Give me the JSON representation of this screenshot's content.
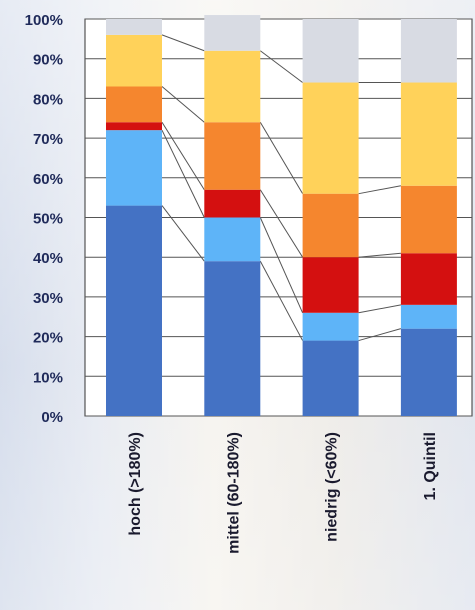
{
  "chart_data": {
    "type": "bar",
    "stacked": true,
    "categories": [
      "hoch (>180%)",
      "mittel (60-180%)",
      "niedrig (<60%)",
      "1. Quintil"
    ],
    "ylim": [
      0,
      100
    ],
    "yticks": [
      0,
      10,
      20,
      30,
      40,
      50,
      60,
      70,
      80,
      90,
      100
    ],
    "ytick_labels": [
      "0%",
      "10%",
      "20%",
      "30%",
      "40%",
      "50%",
      "60%",
      "70%",
      "80%",
      "90%",
      "100%"
    ],
    "grid": true,
    "legend": "none",
    "connector_lines": true,
    "series": [
      {
        "color": "#4472c4",
        "values": [
          53,
          39,
          19,
          22
        ]
      },
      {
        "color": "#5eb4f8",
        "values": [
          19,
          11,
          7,
          6
        ]
      },
      {
        "color": "#d41010",
        "values": [
          2,
          7,
          14,
          13
        ]
      },
      {
        "color": "#f5862e",
        "values": [
          9,
          17,
          16,
          17
        ]
      },
      {
        "color": "#ffd25a",
        "values": [
          13,
          18,
          28,
          26
        ]
      },
      {
        "color": "#d8dbe3",
        "values": [
          4,
          9,
          16,
          16
        ]
      }
    ]
  }
}
